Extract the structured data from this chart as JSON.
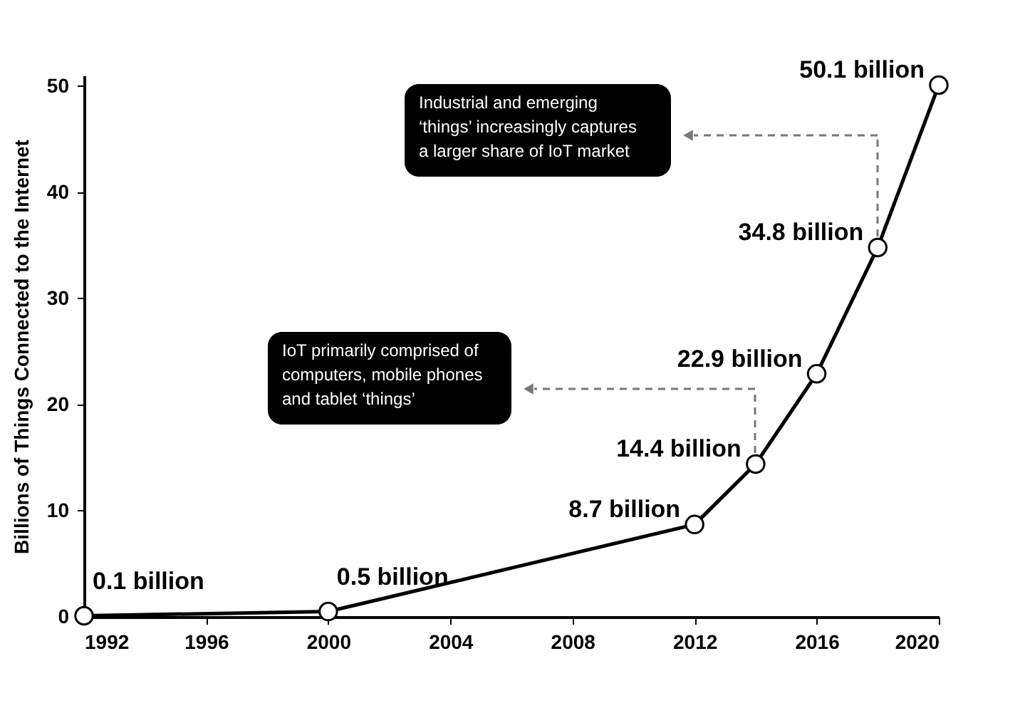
{
  "chart_data": {
    "type": "line",
    "ylabel": "Billions of Things Connected to the Internet",
    "x": [
      1992,
      2000,
      2012,
      2014,
      2016,
      2018,
      2020
    ],
    "series": [
      {
        "color": "#000000",
        "values": [
          0.1,
          0.5,
          8.7,
          14.4,
          22.9,
          34.8,
          50.1
        ],
        "value_labels": [
          "0.1 billion",
          "0.5 billion",
          "8.7 billion",
          "14.4 billion",
          "22.9 billion",
          "34.8 billion",
          "50.1 billion"
        ]
      }
    ],
    "xlim": [
      1992,
      2020
    ],
    "xticks": [
      1992,
      1996,
      2000,
      2004,
      2008,
      2012,
      2016,
      2020
    ],
    "ylim": [
      0,
      51
    ],
    "yticks": [
      0,
      10,
      20,
      30,
      40,
      50
    ],
    "grid": false,
    "marker": "circle",
    "line_style": "solid",
    "annotations": [
      "IoT primarily comprised of\ncomputers, mobile phones\nand tablet ‘things’",
      "Industrial and emerging\n‘things’ increasingly captures\na larger share of IoT market"
    ]
  }
}
